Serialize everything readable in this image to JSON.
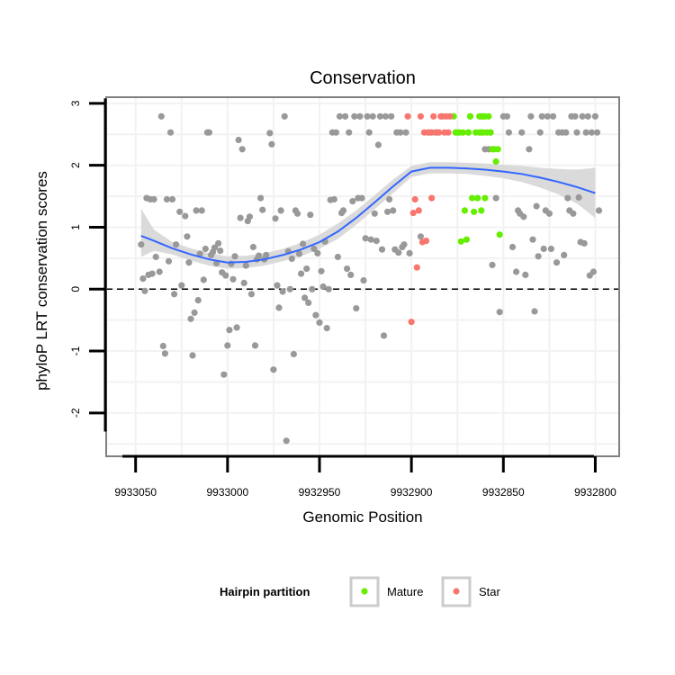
{
  "chart_data": {
    "type": "scatter",
    "title": "Conservation",
    "xlabel": "Genomic Position",
    "ylabel": "phyloP LRT conservation scores",
    "x_reversed": true,
    "xlim": [
      9933066,
      9932787
    ],
    "ylim": [
      -2.7,
      3.1
    ],
    "x_ticks": [
      9933050,
      9933000,
      9932950,
      9932900,
      9932850,
      9932800
    ],
    "x_tick_labels": [
      "9933050",
      "9933000",
      "9932950",
      "9932900",
      "9932850",
      "9932800"
    ],
    "y_ticks": [
      -2,
      -1,
      0,
      1,
      2,
      3
    ],
    "y_tick_labels": [
      "-2",
      "-1",
      "0",
      "1",
      "2",
      "3"
    ],
    "reference_line": {
      "y": 0,
      "style": "dashed"
    },
    "legend": {
      "title": "Hairpin partition",
      "position": "bottom",
      "entries": [
        {
          "label": "Mature",
          "color": "#66ee00"
        },
        {
          "label": "Star",
          "color": "#f8766d"
        }
      ]
    },
    "colors": {
      "other": "#999999",
      "Mature": "#66ee00",
      "Star": "#f8766d",
      "smooth": "#3366ff",
      "ribbon": "#d6d6d6",
      "panel_border": "#808080",
      "grid": "#f2f2f2"
    },
    "smooth_curve": {
      "x": [
        9933047,
        9933040,
        9933030,
        9933020,
        9933010,
        9933000,
        9932990,
        9932980,
        9932970,
        9932960,
        9932950,
        9932940,
        9932930,
        9932920,
        9932910,
        9932900,
        9932890,
        9932880,
        9932870,
        9932860,
        9932850,
        9932840,
        9932830,
        9932820,
        9932810,
        9932800
      ],
      "y": [
        0.86,
        0.78,
        0.66,
        0.56,
        0.48,
        0.43,
        0.44,
        0.48,
        0.55,
        0.64,
        0.76,
        0.93,
        1.15,
        1.4,
        1.66,
        1.9,
        1.96,
        1.96,
        1.95,
        1.93,
        1.9,
        1.86,
        1.8,
        1.73,
        1.65,
        1.55
      ],
      "lower": [
        0.52,
        0.62,
        0.56,
        0.46,
        0.38,
        0.33,
        0.34,
        0.38,
        0.45,
        0.53,
        0.65,
        0.81,
        1.04,
        1.29,
        1.55,
        1.81,
        1.87,
        1.87,
        1.86,
        1.83,
        1.79,
        1.73,
        1.64,
        1.53,
        1.38,
        1.15
      ],
      "upper": [
        1.3,
        0.96,
        0.76,
        0.66,
        0.58,
        0.53,
        0.54,
        0.58,
        0.65,
        0.75,
        0.88,
        1.06,
        1.27,
        1.52,
        1.77,
        1.99,
        2.05,
        2.05,
        2.04,
        2.03,
        2.01,
        1.99,
        1.96,
        1.94,
        1.93,
        1.96
      ]
    },
    "series": [
      {
        "name": "Other",
        "color": "#999999",
        "points": [
          [
            9933047,
            0.72
          ],
          [
            9933046,
            0.17
          ],
          [
            9933045,
            -0.03
          ],
          [
            9933044,
            1.47
          ],
          [
            9933043,
            0.23
          ],
          [
            9933042,
            1.45
          ],
          [
            9933041,
            0.25
          ],
          [
            9933040,
            1.45
          ],
          [
            9933039,
            0.52
          ],
          [
            9933037,
            0.28
          ],
          [
            9933036,
            2.79
          ],
          [
            9933035,
            -0.92
          ],
          [
            9933034,
            -1.04
          ],
          [
            9933033,
            1.45
          ],
          [
            9933032,
            0.45
          ],
          [
            9933031,
            2.53
          ],
          [
            9933030,
            1.45
          ],
          [
            9933029,
            -0.08
          ],
          [
            9933028,
            0.72
          ],
          [
            9933026,
            1.25
          ],
          [
            9933025,
            0.06
          ],
          [
            9933023,
            1.18
          ],
          [
            9933022,
            0.85
          ],
          [
            9933021,
            0.43
          ],
          [
            9933020,
            -0.48
          ],
          [
            9933019,
            -1.07
          ],
          [
            9933018,
            -0.38
          ],
          [
            9933017,
            1.27
          ],
          [
            9933016,
            -0.18
          ],
          [
            9933015,
            0.57
          ],
          [
            9933014,
            1.27
          ],
          [
            9933013,
            0.15
          ],
          [
            9933012,
            0.65
          ],
          [
            9933011,
            2.53
          ],
          [
            9933010,
            2.53
          ],
          [
            9933009,
            0.55
          ],
          [
            9933008,
            0.6
          ],
          [
            9933007,
            0.67
          ],
          [
            9933006,
            0.42
          ],
          [
            9933005,
            0.74
          ],
          [
            9933004,
            0.62
          ],
          [
            9933003,
            0.27
          ],
          [
            9933002,
            -1.38
          ],
          [
            9933001,
            0.22
          ],
          [
            9933000,
            -0.91
          ],
          [
            9932999,
            -0.66
          ],
          [
            9932998,
            0.41
          ],
          [
            9932997,
            0.16
          ],
          [
            9932996,
            0.53
          ],
          [
            9932995,
            -0.62
          ],
          [
            9932994,
            2.41
          ],
          [
            9932993,
            1.15
          ],
          [
            9932992,
            2.26
          ],
          [
            9932991,
            0.1
          ],
          [
            9932990,
            0.38
          ],
          [
            9932989,
            1.1
          ],
          [
            9932988,
            1.17
          ],
          [
            9932987,
            -0.08
          ],
          [
            9932986,
            0.68
          ],
          [
            9932985,
            -0.91
          ],
          [
            9932984,
            0.48
          ],
          [
            9932983,
            0.54
          ],
          [
            9932982,
            1.47
          ],
          [
            9932981,
            1.28
          ],
          [
            9932980,
            0.48
          ],
          [
            9932979,
            0.55
          ],
          [
            9932977,
            2.52
          ],
          [
            9932976,
            2.34
          ],
          [
            9932975,
            -1.3
          ],
          [
            9932974,
            1.14
          ],
          [
            9932973,
            0.06
          ],
          [
            9932972,
            -0.3
          ],
          [
            9932971,
            1.27
          ],
          [
            9932970,
            -0.04
          ],
          [
            9932969,
            2.79
          ],
          [
            9932968,
            -2.45
          ],
          [
            9932967,
            0.61
          ],
          [
            9932966,
            0.0
          ],
          [
            9932965,
            0.49
          ],
          [
            9932964,
            -1.05
          ],
          [
            9932963,
            1.27
          ],
          [
            9932962,
            1.22
          ],
          [
            9932961,
            0.57
          ],
          [
            9932960,
            0.25
          ],
          [
            9932959,
            0.73
          ],
          [
            9932958,
            -0.14
          ],
          [
            9932957,
            0.33
          ],
          [
            9932956,
            -0.22
          ],
          [
            9932955,
            1.2
          ],
          [
            9932954,
            0.0
          ],
          [
            9932953,
            0.65
          ],
          [
            9932952,
            -0.42
          ],
          [
            9932951,
            0.58
          ],
          [
            9932950,
            -0.54
          ],
          [
            9932949,
            0.29
          ],
          [
            9932948,
            0.04
          ],
          [
            9932947,
            0.77
          ],
          [
            9932946,
            -0.63
          ],
          [
            9932945,
            0.0
          ],
          [
            9932944,
            1.44
          ],
          [
            9932943,
            2.53
          ],
          [
            9932942,
            1.45
          ],
          [
            9932941,
            2.53
          ],
          [
            9932940,
            0.52
          ],
          [
            9932939,
            2.79
          ],
          [
            9932938,
            1.23
          ],
          [
            9932937,
            1.27
          ],
          [
            9932936,
            2.79
          ],
          [
            9932935,
            0.33
          ],
          [
            9932934,
            2.53
          ],
          [
            9932933,
            0.23
          ],
          [
            9932932,
            1.42
          ],
          [
            9932931,
            2.79
          ],
          [
            9932930,
            -0.31
          ],
          [
            9932929,
            1.47
          ],
          [
            9932928,
            2.79
          ],
          [
            9932927,
            1.47
          ],
          [
            9932926,
            0.14
          ],
          [
            9932925,
            0.82
          ],
          [
            9932924,
            2.79
          ],
          [
            9932923,
            2.53
          ],
          [
            9932922,
            0.8
          ],
          [
            9932921,
            2.79
          ],
          [
            9932920,
            1.22
          ],
          [
            9932919,
            0.78
          ],
          [
            9932918,
            2.33
          ],
          [
            9932917,
            2.79
          ],
          [
            9932916,
            0.64
          ],
          [
            9932915,
            -0.75
          ],
          [
            9932914,
            2.79
          ],
          [
            9932913,
            1.25
          ],
          [
            9932912,
            1.45
          ],
          [
            9932911,
            2.79
          ],
          [
            9932910,
            1.27
          ],
          [
            9932909,
            0.64
          ],
          [
            9932908,
            2.53
          ],
          [
            9932907,
            0.59
          ],
          [
            9932906,
            2.53
          ],
          [
            9932905,
            0.68
          ],
          [
            9932904,
            0.72
          ],
          [
            9932903,
            2.53
          ],
          [
            9932901,
            0.58
          ],
          [
            9932895,
            0.85
          ],
          [
            9932889,
            2.53
          ],
          [
            9932862,
            2.79
          ],
          [
            9932860,
            2.26
          ],
          [
            9932858,
            2.26
          ],
          [
            9932857,
            2.53
          ],
          [
            9932856,
            0.39
          ],
          [
            9932854,
            1.47
          ],
          [
            9932852,
            -0.37
          ],
          [
            9932850,
            2.79
          ],
          [
            9932848,
            2.79
          ],
          [
            9932847,
            2.53
          ],
          [
            9932845,
            0.68
          ],
          [
            9932843,
            0.28
          ],
          [
            9932842,
            1.27
          ],
          [
            9932841,
            1.22
          ],
          [
            9932840,
            2.53
          ],
          [
            9932839,
            1.17
          ],
          [
            9932838,
            0.23
          ],
          [
            9932836,
            2.26
          ],
          [
            9932835,
            2.79
          ],
          [
            9932834,
            0.8
          ],
          [
            9932833,
            -0.36
          ],
          [
            9932832,
            1.34
          ],
          [
            9932831,
            0.53
          ],
          [
            9932830,
            2.53
          ],
          [
            9932829,
            2.79
          ],
          [
            9932828,
            0.65
          ],
          [
            9932827,
            1.27
          ],
          [
            9932826,
            2.79
          ],
          [
            9932825,
            1.22
          ],
          [
            9932824,
            0.65
          ],
          [
            9932823,
            2.79
          ],
          [
            9932821,
            0.43
          ],
          [
            9932820,
            2.53
          ],
          [
            9932818,
            2.53
          ],
          [
            9932817,
            0.55
          ],
          [
            9932816,
            2.53
          ],
          [
            9932815,
            1.47
          ],
          [
            9932814,
            1.27
          ],
          [
            9932813,
            2.79
          ],
          [
            9932812,
            1.22
          ],
          [
            9932811,
            2.79
          ],
          [
            9932810,
            2.53
          ],
          [
            9932809,
            1.48
          ],
          [
            9932808,
            0.76
          ],
          [
            9932807,
            2.79
          ],
          [
            9932806,
            0.74
          ],
          [
            9932805,
            2.53
          ],
          [
            9932804,
            2.79
          ],
          [
            9932803,
            0.22
          ],
          [
            9932802,
            2.53
          ],
          [
            9932801,
            0.28
          ],
          [
            9932800,
            2.79
          ],
          [
            9932799,
            2.53
          ],
          [
            9932798,
            1.27
          ]
        ]
      },
      {
        "name": "Mature",
        "color": "#66ee00",
        "points": [
          [
            9932877,
            2.79
          ],
          [
            9932876,
            2.53
          ],
          [
            9932875,
            2.53
          ],
          [
            9932874,
            2.53
          ],
          [
            9932873,
            0.77
          ],
          [
            9932872,
            2.53
          ],
          [
            9932871,
            1.27
          ],
          [
            9932870,
            0.8
          ],
          [
            9932869,
            2.53
          ],
          [
            9932868,
            2.79
          ],
          [
            9932867,
            1.47
          ],
          [
            9932866,
            1.25
          ],
          [
            9932865,
            2.53
          ],
          [
            9932864,
            1.47
          ],
          [
            9932863,
            2.53
          ],
          [
            9932862,
            1.27
          ],
          [
            9932861,
            2.53
          ],
          [
            9932860,
            1.47
          ],
          [
            9932869,
            2.53
          ],
          [
            9932868,
            2.79
          ],
          [
            9932863,
            2.79
          ],
          [
            9932862,
            2.53
          ],
          [
            9932861,
            2.79
          ],
          [
            9932860,
            2.79
          ],
          [
            9932859,
            2.53
          ],
          [
            9932858,
            2.79
          ],
          [
            9932857,
            2.53
          ],
          [
            9932856,
            2.26
          ],
          [
            9932855,
            2.26
          ],
          [
            9932854,
            2.06
          ],
          [
            9932853,
            2.26
          ],
          [
            9932852,
            0.88
          ]
        ]
      },
      {
        "name": "Star",
        "color": "#f8766d",
        "points": [
          [
            9932902,
            2.79
          ],
          [
            9932900,
            -0.53
          ],
          [
            9932899,
            1.23
          ],
          [
            9932898,
            1.45
          ],
          [
            9932897,
            0.35
          ],
          [
            9932896,
            1.27
          ],
          [
            9932895,
            2.79
          ],
          [
            9932894,
            0.76
          ],
          [
            9932893,
            2.53
          ],
          [
            9932892,
            0.78
          ],
          [
            9932891,
            2.53
          ],
          [
            9932890,
            2.53
          ],
          [
            9932889,
            1.47
          ],
          [
            9932888,
            2.79
          ],
          [
            9932887,
            2.53
          ],
          [
            9932886,
            2.53
          ],
          [
            9932885,
            2.53
          ],
          [
            9932884,
            2.79
          ],
          [
            9932883,
            2.79
          ],
          [
            9932882,
            2.53
          ],
          [
            9932881,
            2.79
          ],
          [
            9932880,
            2.53
          ],
          [
            9932879,
            2.79
          ]
        ]
      }
    ]
  }
}
